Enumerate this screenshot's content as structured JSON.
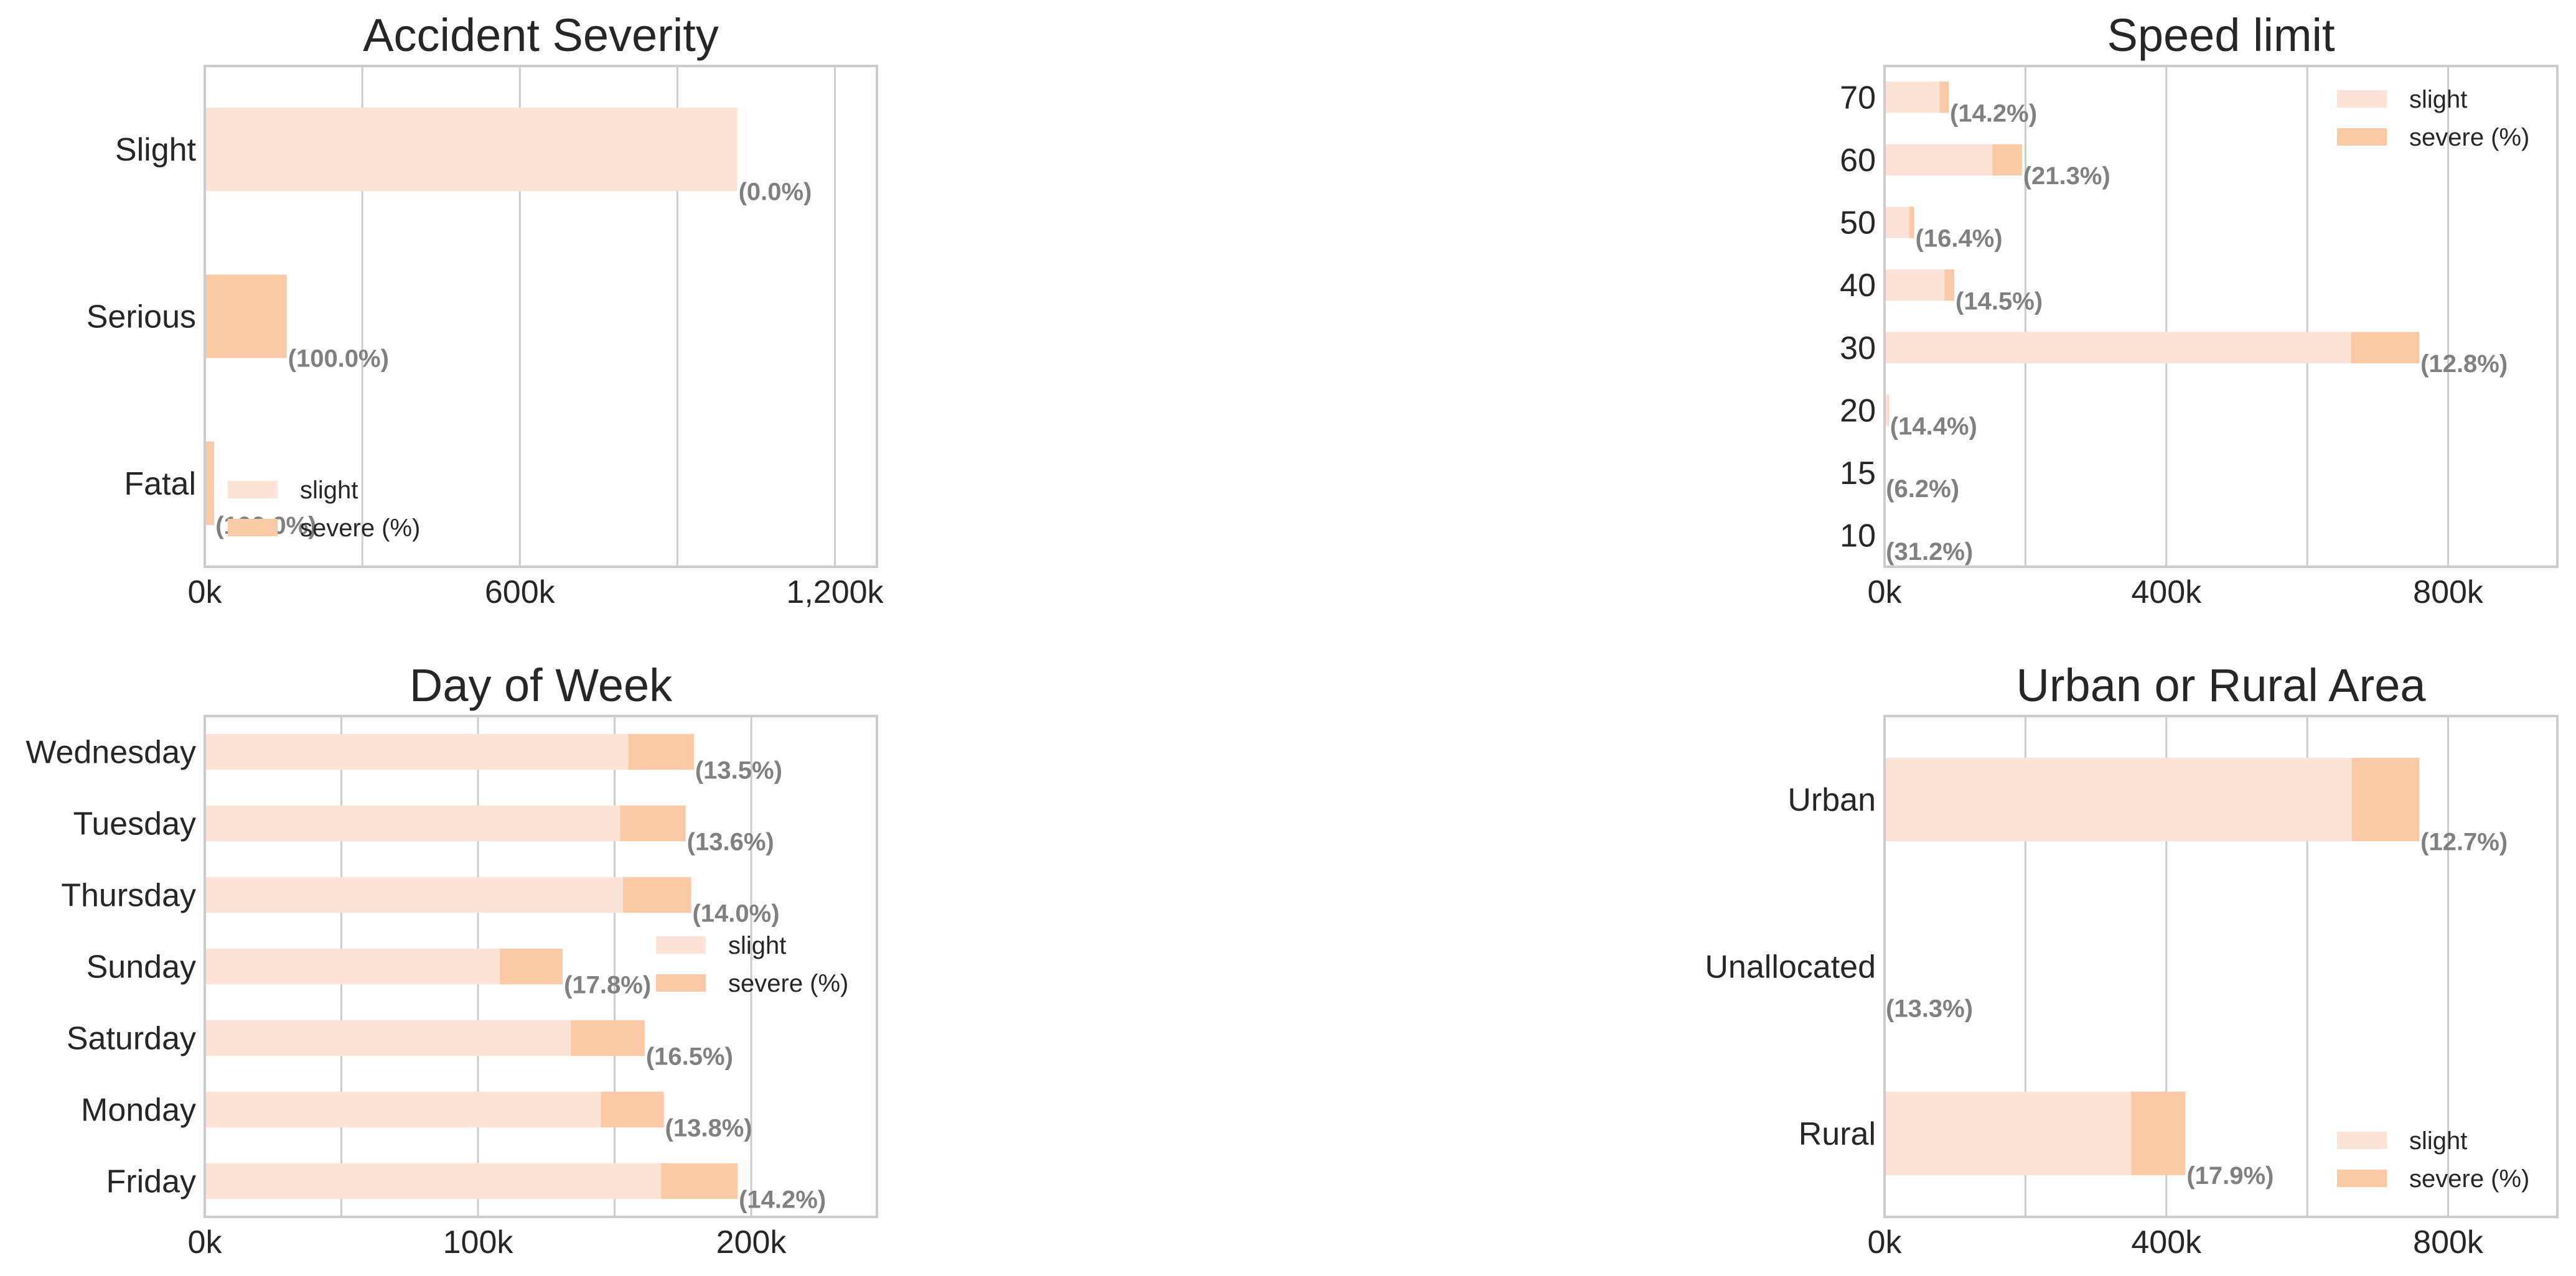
{
  "colors": {
    "slight": "#fde3d6",
    "severe": "#fcc9a6",
    "grid": "#cccccc",
    "frame": "#cccccc",
    "pct_text": "#808080",
    "text": "#262626"
  },
  "legend": {
    "labels": [
      "slight",
      "severe (%)"
    ]
  },
  "chart_data": [
    {
      "type": "bar",
      "orientation": "horizontal",
      "stacked": true,
      "title": "Accident Severity",
      "categories": [
        "Slight",
        "Serious",
        "Fatal"
      ],
      "series": [
        {
          "name": "slight",
          "values": [
            1014000,
            0,
            0
          ]
        },
        {
          "name": "severe (%)",
          "values": [
            0,
            156000,
            18000
          ]
        }
      ],
      "severe_pct_labels": [
        "(0.0%)",
        "(100.0%)",
        "(100.0%)"
      ],
      "xlim": [
        0,
        1280000
      ],
      "xticks": [
        0,
        600000,
        1200000
      ],
      "xtick_labels": [
        "0k",
        "600k",
        "1,200k"
      ],
      "grid": true,
      "legend_position": "lower left"
    },
    {
      "type": "bar",
      "orientation": "horizontal",
      "stacked": true,
      "title": "Speed limit",
      "categories": [
        "70",
        "60",
        "50",
        "40",
        "30",
        "20",
        "15",
        "10"
      ],
      "series": [
        {
          "name": "slight",
          "values": [
            78000,
            153000,
            35000,
            85000,
            662000,
            5000,
            200,
            100
          ]
        },
        {
          "name": "severe (%)",
          "values": [
            13000,
            42000,
            7000,
            14000,
            97000,
            1000,
            15,
            45
          ]
        }
      ],
      "severe_pct_labels": [
        "(14.2%)",
        "(21.3%)",
        "(16.4%)",
        "(14.5%)",
        "(12.8%)",
        "(14.4%)",
        "(6.2%)",
        "(31.2%)"
      ],
      "xlim": [
        0,
        955000
      ],
      "xticks": [
        0,
        400000,
        800000
      ],
      "xtick_labels": [
        "0k",
        "400k",
        "800k"
      ],
      "grid": true,
      "legend_position": "upper right"
    },
    {
      "type": "bar",
      "orientation": "horizontal",
      "stacked": true,
      "title": "Day of Week",
      "categories": [
        "Wednesday",
        "Tuesday",
        "Thursday",
        "Sunday",
        "Saturday",
        "Monday",
        "Friday"
      ],
      "series": [
        {
          "name": "slight",
          "values": [
            155000,
            152000,
            153000,
            108000,
            134000,
            145000,
            167000
          ]
        },
        {
          "name": "severe (%)",
          "values": [
            24000,
            24000,
            25000,
            23000,
            27000,
            23000,
            28000
          ]
        }
      ],
      "severe_pct_labels": [
        "(13.5%)",
        "(13.6%)",
        "(14.0%)",
        "(17.8%)",
        "(16.5%)",
        "(13.8%)",
        "(14.2%)"
      ],
      "xlim": [
        0,
        246000
      ],
      "xticks": [
        0,
        100000,
        200000
      ],
      "xtick_labels": [
        "0k",
        "100k",
        "200k"
      ],
      "grid": true,
      "legend_position": "center right"
    },
    {
      "type": "bar",
      "orientation": "horizontal",
      "stacked": true,
      "title": "Urban or Rural Area",
      "categories": [
        "Urban",
        "Unallocated",
        "Rural"
      ],
      "series": [
        {
          "name": "slight",
          "values": [
            663000,
            0,
            350000
          ]
        },
        {
          "name": "severe (%)",
          "values": [
            96000,
            0,
            77000
          ]
        }
      ],
      "severe_pct_labels": [
        "(12.7%)",
        "(13.3%)",
        "(17.9%)"
      ],
      "xlim": [
        0,
        955000
      ],
      "xticks": [
        0,
        400000,
        800000
      ],
      "xtick_labels": [
        "0k",
        "400k",
        "800k"
      ],
      "grid": true,
      "legend_position": "lower right"
    }
  ]
}
